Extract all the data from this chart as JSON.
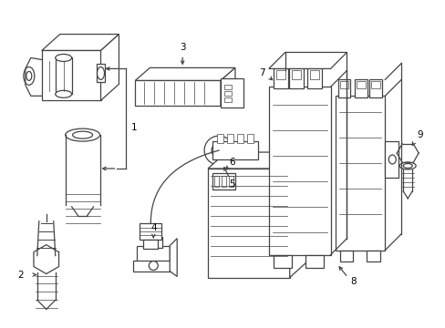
{
  "background_color": "#ffffff",
  "line_color": "#444444",
  "text_color": "#000000",
  "fig_width": 4.89,
  "fig_height": 3.6,
  "dpi": 100,
  "label_fontsize": 7.5
}
